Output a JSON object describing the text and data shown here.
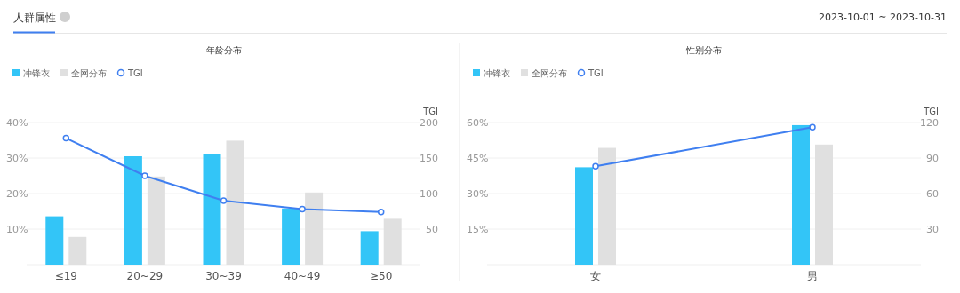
{
  "chart_data": [
    {
      "type": "bar",
      "title": "年龄分布",
      "annotations": [
        "人群属性",
        "2023-10-01 ~ 2023-10-31"
      ],
      "categories": [
        "≤19",
        "20~29",
        "30~39",
        "40~49",
        "≥50"
      ],
      "series": [
        {
          "name": "冲锋衣",
          "color": "#33c5f7",
          "values": [
            13.6,
            30.5,
            31.1,
            15.8,
            9.4
          ]
        },
        {
          "name": "全网分布",
          "color": "#e0e0e0",
          "values": [
            7.8,
            24.8,
            34.9,
            20.3,
            12.9
          ]
        },
        {
          "name": "TGI",
          "type": "line",
          "axis": "y2",
          "color": "#3f7ff0",
          "values": [
            178,
            125,
            90,
            78,
            74
          ]
        }
      ],
      "ylim": [
        0,
        40
      ],
      "yticks": [
        {
          "value": 10,
          "label": "10%"
        },
        {
          "value": 20,
          "label": "20%"
        },
        {
          "value": 30,
          "label": "30%"
        },
        {
          "value": 40,
          "label": "40%"
        }
      ],
      "y2lim": [
        0,
        200
      ],
      "y2ticks": [
        50,
        100,
        150,
        200
      ],
      "y2label": "TGI",
      "grid": "y",
      "legend": "top left",
      "marker": "circle"
    },
    {
      "type": "bar",
      "title": "性别分布",
      "categories": [
        "女",
        "男"
      ],
      "series": [
        {
          "name": "冲锋衣",
          "color": "#33c5f7",
          "values": [
            41.1,
            58.9
          ]
        },
        {
          "name": "全网分布",
          "color": "#e0e0e0",
          "values": [
            49.3,
            50.7
          ]
        },
        {
          "name": "TGI",
          "type": "line",
          "axis": "y2",
          "color": "#3f7ff0",
          "values": [
            83,
            116
          ]
        }
      ],
      "ylim": [
        0,
        60
      ],
      "yticks": [
        {
          "value": 15,
          "label": "15%"
        },
        {
          "value": 30,
          "label": "30%"
        },
        {
          "value": 45,
          "label": "45%"
        },
        {
          "value": 60,
          "label": "60%"
        }
      ],
      "y2lim": [
        0,
        120
      ],
      "y2ticks": [
        30,
        60,
        90,
        120
      ],
      "y2label": "TGI",
      "grid": "y",
      "legend": "top left",
      "marker": "circle"
    }
  ]
}
